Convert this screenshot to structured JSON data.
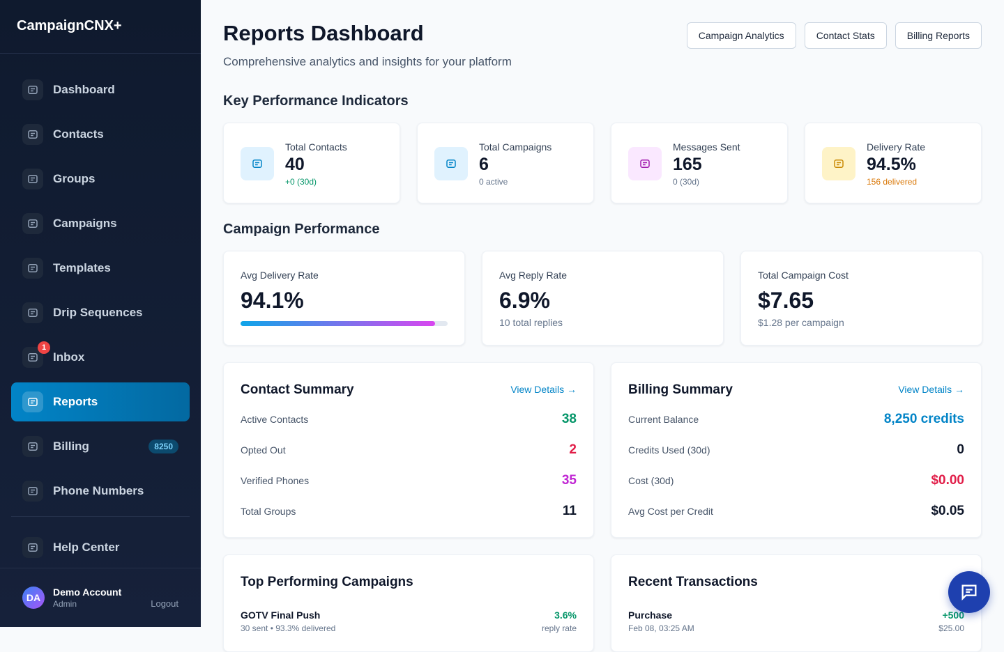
{
  "sidebar": {
    "brand": "CampaignCNX+",
    "nav": [
      {
        "label": "Dashboard"
      },
      {
        "label": "Contacts"
      },
      {
        "label": "Groups"
      },
      {
        "label": "Campaigns"
      },
      {
        "label": "Templates"
      },
      {
        "label": "Drip Sequences"
      },
      {
        "label": "Inbox",
        "badge": "1"
      },
      {
        "label": "Reports",
        "active": true
      },
      {
        "label": "Billing",
        "badge": "8250"
      },
      {
        "label": "Phone Numbers"
      }
    ],
    "help": "Help Center",
    "user": {
      "initials": "DA",
      "name": "Demo Account",
      "role": "Admin",
      "logout": "Logout"
    }
  },
  "header": {
    "title": "Reports Dashboard",
    "subtitle": "Comprehensive analytics and insights for your platform",
    "buttons": [
      "Campaign Analytics",
      "Contact Stats",
      "Billing Reports"
    ]
  },
  "kpi": {
    "title": "Key Performance Indicators",
    "cards": [
      {
        "label": "Total Contacts",
        "value": "40",
        "note": "+0 (30d)",
        "accent": "#0284c7",
        "tint": "#e0f2fe",
        "note_color": "#059669"
      },
      {
        "label": "Total Campaigns",
        "value": "6",
        "note": "0 active",
        "accent": "#0284c7",
        "tint": "#e0f2fe",
        "note_color": "#64748b"
      },
      {
        "label": "Messages Sent",
        "value": "165",
        "note": "0 (30d)",
        "accent": "#a21caf",
        "tint": "#fae8ff",
        "note_color": "#64748b"
      },
      {
        "label": "Delivery Rate",
        "value": "94.5%",
        "note": "156 delivered",
        "accent": "#ca8a04",
        "tint": "#fef3c7",
        "note_color": "#d97706"
      }
    ]
  },
  "performance": {
    "title": "Campaign Performance",
    "cards": [
      {
        "label": "Avg Delivery Rate",
        "value": "94.1%",
        "progress": true
      },
      {
        "label": "Avg Reply Rate",
        "value": "6.9%",
        "note": "10 total replies"
      },
      {
        "label": "Total Campaign Cost",
        "value": "$7.65",
        "note": "$1.28 per campaign"
      }
    ]
  },
  "summaries": [
    {
      "title": "Contact Summary",
      "link": "View Details →",
      "rows": [
        {
          "label": "Active Contacts",
          "value": "38",
          "color": "#059669"
        },
        {
          "label": "Opted Out",
          "value": "2",
          "color": "#e11d48"
        },
        {
          "label": "Verified Phones",
          "value": "35",
          "color": "#c026d3"
        },
        {
          "label": "Total Groups",
          "value": "11",
          "color": "#0f172a"
        }
      ]
    },
    {
      "title": "Billing Summary",
      "link": "View Details →",
      "rows": [
        {
          "label": "Current Balance",
          "value": "8,250 credits",
          "color": "#0284c7"
        },
        {
          "label": "Credits Used (30d)",
          "value": "0",
          "color": "#0f172a"
        },
        {
          "label": "Cost (30d)",
          "value": "$0.00",
          "color": "#e11d48"
        },
        {
          "label": "Avg Cost per Credit",
          "value": "$0.05",
          "color": "#0f172a"
        }
      ]
    }
  ],
  "lists": [
    {
      "title": "Top Performing Campaigns",
      "items": [
        {
          "name": "GOTV Final Push",
          "detail": "30 sent • 93.3% delivered",
          "value": "3.6%",
          "sub": "reply rate"
        }
      ]
    },
    {
      "title": "Recent Transactions",
      "items": [
        {
          "name": "Purchase",
          "detail": "Feb 08, 03:25 AM",
          "value": "+500",
          "sub": "$25.00"
        }
      ]
    }
  ]
}
